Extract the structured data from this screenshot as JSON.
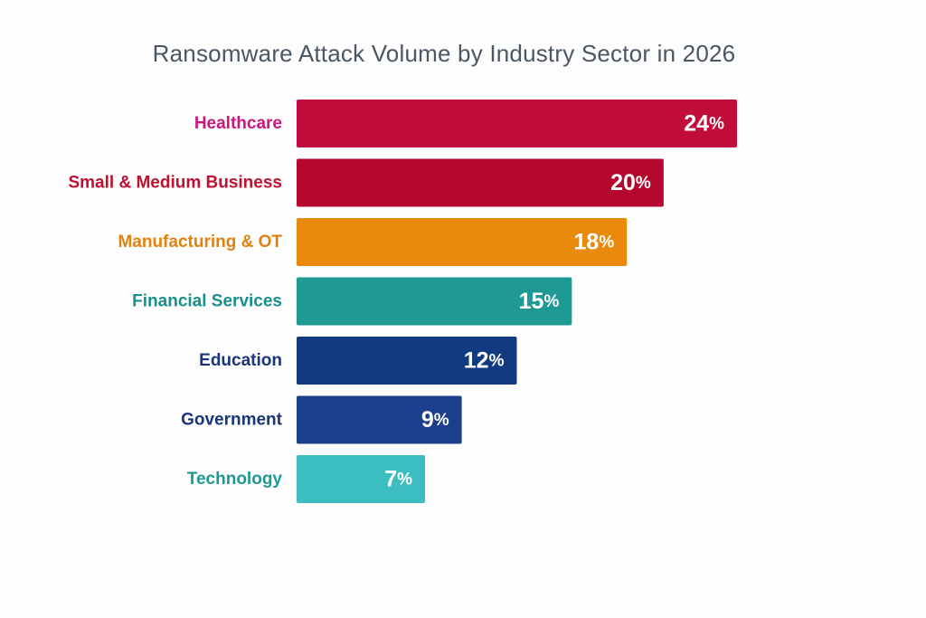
{
  "chart_data": {
    "type": "bar",
    "orientation": "horizontal",
    "title": "Ransomware Attack Volume by Industry Sector in 2026",
    "categories": [
      "Healthcare",
      "Small & Medium Business",
      "Manufacturing & OT",
      "Financial Services",
      "Education",
      "Government",
      "Technology"
    ],
    "values": [
      24,
      20,
      18,
      15,
      12,
      9,
      7
    ],
    "value_suffix": "%",
    "xlim": [
      0,
      24
    ],
    "grid": false,
    "legend": "none",
    "bar_colors": [
      "#c20c3b",
      "#b5072e",
      "#ea8a0b",
      "#1f9993",
      "#123a80",
      "#1b3f8c",
      "#3cbec0"
    ],
    "label_colors": [
      "#c7187e",
      "#c0102f",
      "#e0820e",
      "#178f8c",
      "#1a3678",
      "#1a3678",
      "#1f9993"
    ]
  }
}
